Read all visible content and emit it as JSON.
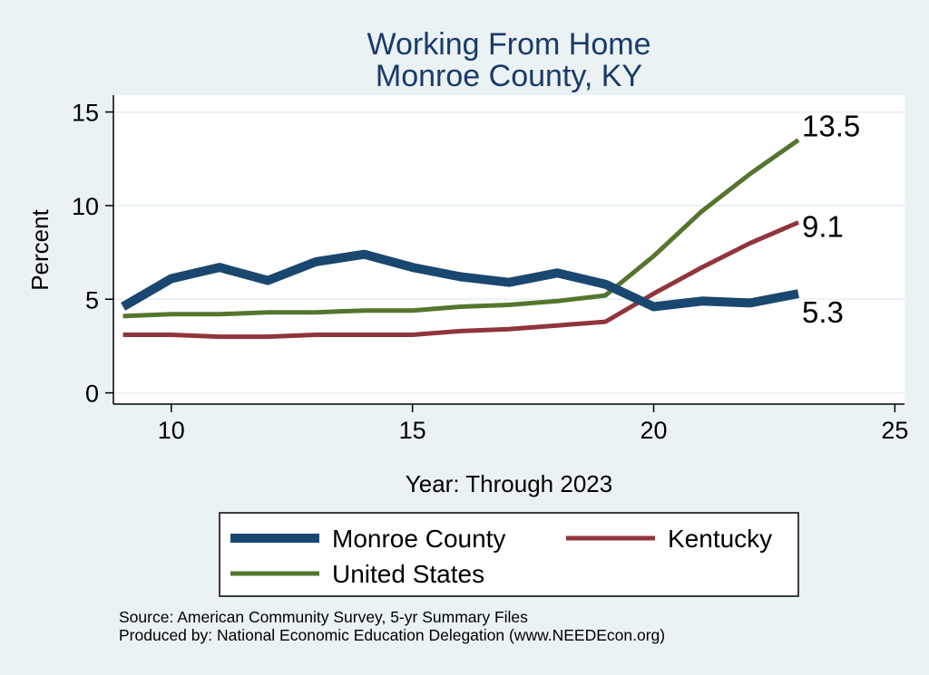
{
  "chart_data": {
    "type": "line",
    "title": [
      "Working From Home",
      "Monroe County, KY"
    ],
    "xlabel": "Year: Through 2023",
    "ylabel": "Percent",
    "xlim": [
      8.8,
      25.2
    ],
    "ylim": [
      -0.6,
      15.9
    ],
    "xticks": [
      10,
      15,
      20,
      25
    ],
    "yticks": [
      0,
      5,
      10,
      15
    ],
    "grid": true,
    "legend_position": "bottom",
    "x": [
      9,
      10,
      11,
      12,
      13,
      14,
      15,
      16,
      17,
      18,
      19,
      20,
      21,
      22,
      23
    ],
    "series": [
      {
        "name": "Monroe County",
        "color": "#1a476f",
        "width": "thick",
        "values": [
          4.6,
          6.1,
          6.7,
          6.0,
          7.0,
          7.4,
          6.7,
          6.2,
          5.9,
          6.4,
          5.8,
          4.6,
          4.9,
          4.8,
          5.3
        ],
        "end_label": "5.3"
      },
      {
        "name": "Kentucky",
        "color": "#90353b",
        "width": "medium",
        "values": [
          3.1,
          3.1,
          3.0,
          3.0,
          3.1,
          3.1,
          3.1,
          3.3,
          3.4,
          3.6,
          3.8,
          5.3,
          6.7,
          8.0,
          9.1
        ],
        "end_label": "9.1"
      },
      {
        "name": "United States",
        "color": "#55752f",
        "width": "medium",
        "values": [
          4.1,
          4.2,
          4.2,
          4.3,
          4.3,
          4.4,
          4.4,
          4.6,
          4.7,
          4.9,
          5.2,
          7.3,
          9.7,
          11.7,
          13.5
        ],
        "end_label": "13.5"
      }
    ]
  },
  "footer": {
    "source": "Source: American Community Survey, 5-yr Summary Files",
    "produced_by": "Produced by: National Economic Education Delegation (www.NEEDEcon.org)"
  }
}
